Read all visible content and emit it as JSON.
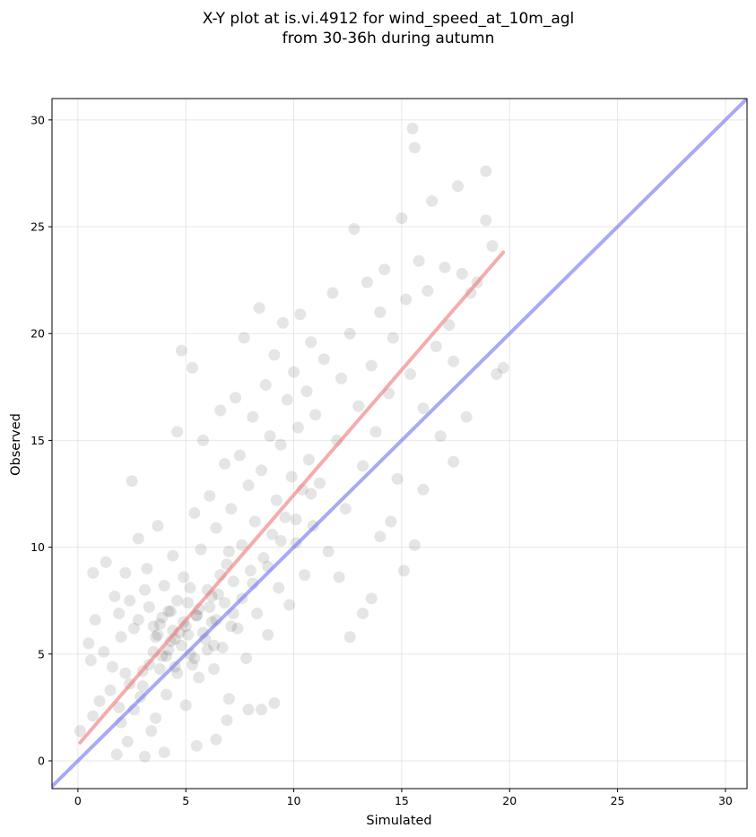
{
  "chart_data": {
    "type": "scatter",
    "title_lines": [
      "X-Y plot at is.vi.4912 for wind_speed_at_10m_agl",
      "from 30-36h during autumn"
    ],
    "xlabel": "Simulated",
    "ylabel": "Observed",
    "xlim": [
      -1.2,
      31
    ],
    "ylim": [
      -1.3,
      31
    ],
    "xticks": [
      0,
      5,
      10,
      15,
      20,
      25,
      30
    ],
    "yticks": [
      0,
      5,
      10,
      15,
      20,
      25,
      30
    ],
    "grid": true,
    "point_color": "#000000",
    "point_opacity": 0.1,
    "series": [
      {
        "kind": "points",
        "points": [
          [
            0.1,
            1.4
          ],
          [
            0.5,
            5.5
          ],
          [
            0.6,
            4.7
          ],
          [
            0.7,
            8.8
          ],
          [
            0.8,
            6.6
          ],
          [
            0.7,
            2.1
          ],
          [
            1.0,
            2.8
          ],
          [
            1.3,
            9.3
          ],
          [
            1.5,
            3.3
          ],
          [
            1.7,
            7.7
          ],
          [
            1.9,
            2.5
          ],
          [
            2.0,
            5.8
          ],
          [
            2.2,
            8.8
          ],
          [
            2.4,
            3.6
          ],
          [
            2.5,
            13.1
          ],
          [
            2.6,
            6.2
          ],
          [
            2.8,
            10.4
          ],
          [
            3.0,
            4.2
          ],
          [
            3.1,
            0.2
          ],
          [
            3.2,
            9.0
          ],
          [
            3.3,
            7.2
          ],
          [
            3.5,
            5.1
          ],
          [
            3.6,
            2.0
          ],
          [
            3.7,
            11.0
          ],
          [
            3.8,
            6.4
          ],
          [
            3.9,
            4.9
          ],
          [
            4.0,
            8.2
          ],
          [
            4.1,
            3.1
          ],
          [
            4.2,
            7.0
          ],
          [
            4.3,
            5.6
          ],
          [
            4.4,
            9.6
          ],
          [
            4.5,
            4.4
          ],
          [
            4.6,
            15.4
          ],
          [
            4.7,
            6.0
          ],
          [
            4.8,
            19.2
          ],
          [
            4.9,
            8.6
          ],
          [
            5.0,
            2.6
          ],
          [
            5.1,
            7.4
          ],
          [
            5.2,
            5.0
          ],
          [
            5.3,
            18.4
          ],
          [
            5.4,
            11.6
          ],
          [
            5.5,
            6.8
          ],
          [
            5.6,
            3.9
          ],
          [
            5.7,
            9.9
          ],
          [
            5.8,
            15.0
          ],
          [
            5.9,
            5.7
          ],
          [
            6.0,
            8.0
          ],
          [
            6.1,
            12.4
          ],
          [
            6.2,
            6.5
          ],
          [
            6.3,
            4.3
          ],
          [
            6.4,
            10.9
          ],
          [
            6.5,
            7.8
          ],
          [
            6.6,
            16.4
          ],
          [
            6.7,
            5.3
          ],
          [
            6.8,
            13.9
          ],
          [
            6.9,
            9.2
          ],
          [
            7.0,
            2.9
          ],
          [
            7.1,
            11.8
          ],
          [
            7.2,
            8.4
          ],
          [
            7.3,
            17.0
          ],
          [
            7.4,
            6.2
          ],
          [
            7.5,
            14.3
          ],
          [
            7.6,
            10.1
          ],
          [
            7.7,
            19.8
          ],
          [
            7.8,
            4.8
          ],
          [
            7.9,
            12.9
          ],
          [
            8.0,
            8.9
          ],
          [
            8.1,
            16.1
          ],
          [
            8.2,
            11.2
          ],
          [
            8.3,
            6.9
          ],
          [
            8.4,
            21.2
          ],
          [
            8.5,
            13.6
          ],
          [
            8.6,
            9.5
          ],
          [
            8.7,
            17.6
          ],
          [
            8.8,
            5.9
          ],
          [
            8.9,
            15.2
          ],
          [
            9.0,
            10.6
          ],
          [
            9.1,
            19.0
          ],
          [
            9.2,
            12.2
          ],
          [
            9.3,
            8.1
          ],
          [
            9.4,
            14.8
          ],
          [
            9.5,
            20.5
          ],
          [
            9.6,
            11.4
          ],
          [
            9.7,
            16.9
          ],
          [
            9.8,
            7.3
          ],
          [
            9.9,
            13.3
          ],
          [
            10.0,
            18.2
          ],
          [
            10.1,
            10.2
          ],
          [
            10.2,
            15.6
          ],
          [
            10.3,
            20.9
          ],
          [
            10.4,
            12.7
          ],
          [
            10.5,
            8.7
          ],
          [
            10.6,
            17.3
          ],
          [
            10.7,
            14.1
          ],
          [
            10.8,
            19.6
          ],
          [
            10.9,
            11.0
          ],
          [
            11.0,
            16.2
          ],
          [
            11.2,
            13.0
          ],
          [
            11.4,
            18.8
          ],
          [
            11.6,
            9.8
          ],
          [
            11.8,
            21.9
          ],
          [
            12.0,
            15.0
          ],
          [
            12.2,
            17.9
          ],
          [
            12.4,
            11.8
          ],
          [
            12.6,
            20.0
          ],
          [
            12.8,
            24.9
          ],
          [
            13.0,
            16.6
          ],
          [
            13.2,
            13.8
          ],
          [
            13.4,
            22.4
          ],
          [
            13.6,
            18.5
          ],
          [
            13.8,
            15.4
          ],
          [
            14.0,
            21.0
          ],
          [
            14.2,
            23.0
          ],
          [
            14.4,
            17.2
          ],
          [
            14.6,
            19.8
          ],
          [
            14.8,
            13.2
          ],
          [
            15.0,
            25.4
          ],
          [
            15.2,
            21.6
          ],
          [
            15.4,
            18.1
          ],
          [
            15.5,
            29.6
          ],
          [
            15.6,
            28.7
          ],
          [
            15.8,
            23.4
          ],
          [
            16.0,
            16.5
          ],
          [
            16.2,
            22.0
          ],
          [
            16.4,
            26.2
          ],
          [
            16.6,
            19.4
          ],
          [
            16.8,
            15.2
          ],
          [
            17.0,
            23.1
          ],
          [
            17.2,
            20.4
          ],
          [
            17.4,
            18.7
          ],
          [
            17.6,
            26.9
          ],
          [
            17.8,
            22.8
          ],
          [
            18.0,
            16.1
          ],
          [
            18.2,
            21.9
          ],
          [
            18.5,
            22.4
          ],
          [
            18.9,
            25.3
          ],
          [
            18.9,
            27.6
          ],
          [
            19.2,
            24.1
          ],
          [
            19.4,
            18.1
          ],
          [
            19.7,
            18.4
          ],
          [
            12.1,
            8.6
          ],
          [
            12.6,
            5.8
          ],
          [
            13.2,
            6.9
          ],
          [
            13.6,
            7.6
          ],
          [
            14.0,
            10.5
          ],
          [
            14.5,
            11.2
          ],
          [
            15.1,
            8.9
          ],
          [
            15.6,
            10.1
          ],
          [
            16.0,
            12.7
          ],
          [
            17.4,
            14.0
          ],
          [
            9.1,
            2.7
          ],
          [
            8.5,
            2.4
          ],
          [
            7.9,
            2.4
          ],
          [
            6.9,
            1.9
          ],
          [
            6.4,
            1.0
          ],
          [
            5.5,
            0.7
          ],
          [
            4.0,
            0.4
          ],
          [
            2.3,
            0.9
          ],
          [
            1.8,
            0.3
          ],
          [
            3.4,
            1.4
          ],
          [
            2.9,
            3.0
          ],
          [
            3.3,
            4.5
          ],
          [
            3.6,
            5.8
          ],
          [
            3.9,
            6.7
          ],
          [
            4.2,
            5.2
          ],
          [
            4.4,
            6.1
          ],
          [
            4.6,
            7.5
          ],
          [
            4.8,
            5.4
          ],
          [
            5.0,
            6.3
          ],
          [
            5.2,
            8.1
          ],
          [
            5.4,
            4.8
          ],
          [
            5.6,
            7.1
          ],
          [
            5.8,
            6.0
          ],
          [
            6.0,
            5.2
          ],
          [
            6.2,
            7.7
          ],
          [
            6.4,
            6.6
          ],
          [
            6.6,
            8.7
          ],
          [
            6.8,
            7.4
          ],
          [
            7.0,
            9.8
          ],
          [
            7.2,
            6.9
          ],
          [
            4.1,
            4.9
          ],
          [
            3.7,
            5.9
          ],
          [
            4.5,
            5.7
          ],
          [
            5.1,
            5.9
          ],
          [
            3.5,
            6.3
          ],
          [
            4.3,
            7.0
          ],
          [
            4.9,
            6.5
          ],
          [
            5.5,
            6.8
          ],
          [
            6.1,
            7.2
          ],
          [
            3.8,
            4.3
          ],
          [
            4.6,
            4.1
          ],
          [
            5.3,
            4.5
          ],
          [
            6.3,
            5.4
          ],
          [
            7.1,
            6.3
          ],
          [
            7.6,
            7.6
          ],
          [
            8.1,
            8.3
          ],
          [
            8.8,
            9.1
          ],
          [
            9.4,
            10.3
          ],
          [
            10.1,
            11.3
          ],
          [
            10.8,
            12.5
          ],
          [
            2.0,
            1.8
          ],
          [
            2.6,
            2.4
          ],
          [
            3.0,
            3.5
          ],
          [
            2.2,
            4.1
          ],
          [
            1.6,
            4.4
          ],
          [
            1.2,
            5.1
          ],
          [
            2.8,
            6.6
          ],
          [
            2.4,
            7.5
          ],
          [
            1.9,
            6.9
          ],
          [
            3.1,
            8.0
          ]
        ]
      },
      {
        "kind": "line",
        "name_hidden": "fit",
        "color": "#f08080",
        "x": [
          0.1,
          19.7
        ],
        "y": [
          0.85,
          23.8
        ]
      },
      {
        "kind": "line",
        "name_hidden": "identity",
        "color": "#7b7bf0",
        "x": [
          -1.2,
          31
        ],
        "y": [
          -1.2,
          31
        ]
      }
    ]
  }
}
